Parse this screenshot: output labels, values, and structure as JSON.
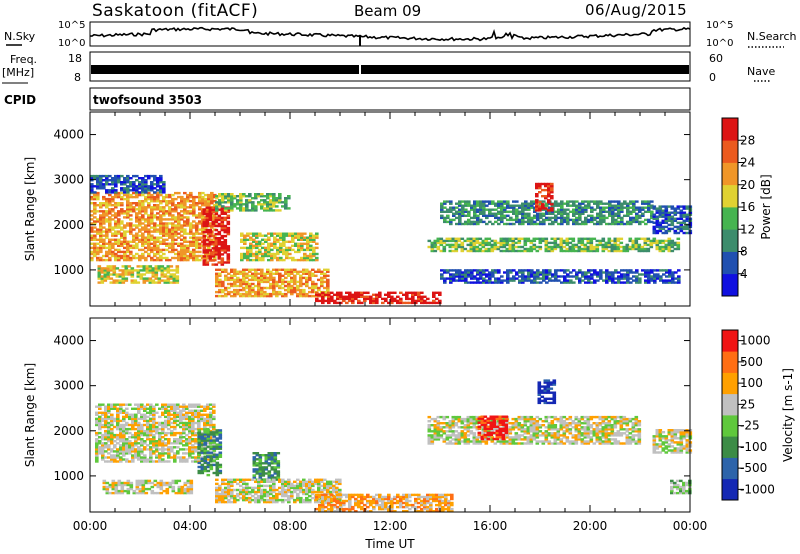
{
  "header": {
    "title": "Saskatoon (fitACF)",
    "beam": "Beam 09",
    "date": "06/Aug/2015"
  },
  "strips": {
    "nsky_label": "N.Sky",
    "nsky_ticks": [
      "10^5",
      "10^0"
    ],
    "nsearch_label": "N.Search",
    "freq_label": "Freq.",
    "freq_unit": "[MHz]",
    "freq_ticks": [
      "18",
      "8"
    ],
    "nave_label": "Nave",
    "nave_ticks": [
      "60",
      "0"
    ],
    "cpid_label": "CPID",
    "cpid_value": "twofsound 3503"
  },
  "chart_data": [
    {
      "type": "heatmap",
      "panel": "power",
      "ylabel": "Slant Range [km]",
      "yticks": [
        1000,
        2000,
        3000,
        4000
      ],
      "ylim": [
        200,
        4500
      ],
      "xlim_hours": [
        0,
        24
      ],
      "colorbar_label": "Power [dB]",
      "colorbar_ticks": [
        "4",
        "8",
        "12",
        "16",
        "20",
        "24",
        "28"
      ],
      "colors": [
        "#1010e0",
        "#2050b0",
        "#3c8c6c",
        "#46b450",
        "#e0d232",
        "#f09628",
        "#eb5a1e",
        "#dc1414"
      ],
      "regions": [
        {
          "t0": 0.0,
          "t1": 5.0,
          "r0": 1200,
          "r1": 2700,
          "level": 5
        },
        {
          "t0": 0.0,
          "t1": 3.0,
          "r0": 2700,
          "r1": 3100,
          "level": 1
        },
        {
          "t0": 0.3,
          "t1": 3.5,
          "r0": 700,
          "r1": 1100,
          "level": 4
        },
        {
          "t0": 4.5,
          "t1": 5.5,
          "r0": 1100,
          "r1": 2400,
          "level": 7
        },
        {
          "t0": 5.0,
          "t1": 9.5,
          "r0": 400,
          "r1": 1000,
          "level": 5
        },
        {
          "t0": 6.0,
          "t1": 9.0,
          "r0": 1200,
          "r1": 1800,
          "level": 4
        },
        {
          "t0": 5.0,
          "t1": 8.0,
          "r0": 2300,
          "r1": 2700,
          "level": 3
        },
        {
          "t0": 9.0,
          "t1": 14.0,
          "r0": 250,
          "r1": 500,
          "level": 7
        },
        {
          "t0": 13.5,
          "t1": 23.5,
          "r0": 1400,
          "r1": 1700,
          "level": 3
        },
        {
          "t0": 14.0,
          "t1": 22.5,
          "r0": 2000,
          "r1": 2500,
          "level": 2
        },
        {
          "t0": 14.0,
          "t1": 23.5,
          "r0": 700,
          "r1": 1000,
          "level": 1
        },
        {
          "t0": 17.8,
          "t1": 18.5,
          "r0": 2300,
          "r1": 2900,
          "level": 7
        },
        {
          "t0": 22.5,
          "t1": 24.0,
          "r0": 1800,
          "r1": 2400,
          "level": 1
        }
      ]
    },
    {
      "type": "heatmap",
      "panel": "velocity",
      "ylabel": "Slant Range [km]",
      "yticks": [
        1000,
        2000,
        3000,
        4000
      ],
      "ylim": [
        200,
        4500
      ],
      "xlabel": "Time UT",
      "xticks": [
        "00:00",
        "04:00",
        "08:00",
        "12:00",
        "16:00",
        "20:00",
        "00:00"
      ],
      "xlim_hours": [
        0,
        24
      ],
      "colorbar_label": "Velocity [m s-1]",
      "colorbar_ticks": [
        "1000",
        "500",
        "100",
        "25",
        "-25",
        "-100",
        "-500",
        "-1000"
      ],
      "colors": [
        "#1428b4",
        "#2d64aa",
        "#3c8c46",
        "#5fc83c",
        "#c0c0c0",
        "#ffa000",
        "#ff6e14",
        "#f01414"
      ],
      "regions": [
        {
          "t0": 0.2,
          "t1": 5.0,
          "r0": 1300,
          "r1": 2600,
          "level": 4
        },
        {
          "t0": 0.5,
          "t1": 4.0,
          "r0": 600,
          "r1": 900,
          "level": 4
        },
        {
          "t0": 4.3,
          "t1": 5.2,
          "r0": 1000,
          "r1": 2000,
          "level": 2
        },
        {
          "t0": 6.5,
          "t1": 7.5,
          "r0": 900,
          "r1": 1500,
          "level": 2
        },
        {
          "t0": 5.0,
          "t1": 10.0,
          "r0": 400,
          "r1": 900,
          "level": 4
        },
        {
          "t0": 9.0,
          "t1": 14.5,
          "r0": 200,
          "r1": 600,
          "level": 5
        },
        {
          "t0": 13.5,
          "t1": 22.0,
          "r0": 1700,
          "r1": 2300,
          "level": 4
        },
        {
          "t0": 15.5,
          "t1": 16.6,
          "r0": 1800,
          "r1": 2300,
          "level": 7
        },
        {
          "t0": 17.9,
          "t1": 18.6,
          "r0": 2600,
          "r1": 3100,
          "level": 0
        },
        {
          "t0": 22.5,
          "t1": 24.0,
          "r0": 1500,
          "r1": 2000,
          "level": 4
        },
        {
          "t0": 23.2,
          "t1": 24.0,
          "r0": 600,
          "r1": 900,
          "level": 3
        }
      ]
    }
  ]
}
